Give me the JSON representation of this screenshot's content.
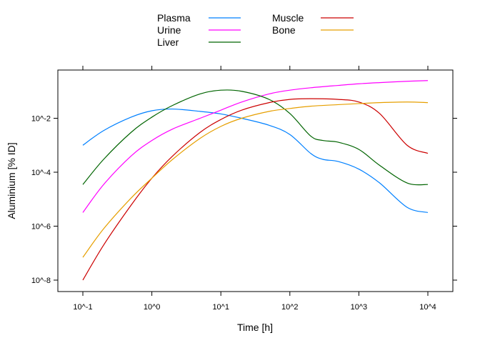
{
  "chart_data": {
    "type": "line",
    "xlabel": "Time [h]",
    "ylabel": "Aluminium [% ID]",
    "x_scale": "log10",
    "y_scale": "log10",
    "xlim": [
      0.1,
      10000
    ],
    "ylim": [
      1e-08,
      1
    ],
    "x_ticks": [
      {
        "value": 0.1,
        "label": "10^-1"
      },
      {
        "value": 1,
        "label": "10^0"
      },
      {
        "value": 10,
        "label": "10^1"
      },
      {
        "value": 100,
        "label": "10^2"
      },
      {
        "value": 1000,
        "label": "10^3"
      },
      {
        "value": 10000,
        "label": "10^4"
      }
    ],
    "y_ticks": [
      {
        "value": 0.01,
        "label": "10^-2"
      },
      {
        "value": 0.0001,
        "label": "10^-4"
      },
      {
        "value": 1e-06,
        "label": "10^-6"
      },
      {
        "value": 1e-08,
        "label": "10^-8"
      }
    ],
    "grid": false,
    "legend_position": "top",
    "legend": {
      "col1": [
        "Plasma",
        "Urine",
        "Liver"
      ],
      "col2": [
        "Muscle",
        "Bone"
      ]
    },
    "series": [
      {
        "name": "Plasma",
        "color": "#0080ff",
        "x": [
          0.1,
          0.2,
          0.5,
          1,
          2,
          5,
          10,
          20,
          50,
          100,
          200,
          300,
          500,
          1000,
          2000,
          5000,
          10000
        ],
        "y": [
          0.001,
          0.0035,
          0.011,
          0.019,
          0.022,
          0.018,
          0.0145,
          0.01,
          0.0055,
          0.0025,
          0.0005,
          0.0003,
          0.00025,
          0.00013,
          4e-05,
          5e-06,
          3.2e-06
        ]
      },
      {
        "name": "Urine",
        "color": "#ff00ff",
        "x": [
          0.1,
          0.2,
          0.5,
          1,
          2,
          5,
          10,
          20,
          50,
          100,
          200,
          500,
          1000,
          2000,
          5000,
          10000
        ],
        "y": [
          3.2e-06,
          3.5e-05,
          0.0004,
          0.0015,
          0.004,
          0.01,
          0.02,
          0.04,
          0.08,
          0.11,
          0.135,
          0.165,
          0.19,
          0.21,
          0.235,
          0.25
        ]
      },
      {
        "name": "Liver",
        "color": "#006400",
        "x": [
          0.1,
          0.2,
          0.5,
          1,
          2,
          5,
          10,
          20,
          50,
          100,
          200,
          300,
          500,
          1000,
          2000,
          5000,
          10000
        ],
        "y": [
          3.5e-05,
          0.0003,
          0.003,
          0.011,
          0.03,
          0.08,
          0.11,
          0.1,
          0.05,
          0.015,
          0.0022,
          0.0015,
          0.0013,
          0.0007,
          0.00018,
          4e-05,
          3.5e-05
        ]
      },
      {
        "name": "Muscle",
        "color": "#cc0000",
        "x": [
          0.1,
          0.2,
          0.5,
          1,
          2,
          5,
          10,
          20,
          50,
          100,
          200,
          500,
          1000,
          2000,
          5000,
          10000
        ],
        "y": [
          1e-08,
          2e-07,
          6e-06,
          6e-05,
          0.0004,
          0.003,
          0.009,
          0.02,
          0.038,
          0.05,
          0.053,
          0.05,
          0.04,
          0.015,
          0.001,
          0.0005
        ]
      },
      {
        "name": "Bone",
        "color": "#e69f00",
        "x": [
          0.1,
          0.2,
          0.5,
          1,
          2,
          5,
          10,
          20,
          50,
          100,
          200,
          500,
          1000,
          2000,
          5000,
          10000
        ],
        "y": [
          7e-08,
          8e-07,
          1.1e-05,
          6e-05,
          0.0003,
          0.0018,
          0.005,
          0.01,
          0.018,
          0.023,
          0.028,
          0.032,
          0.035,
          0.038,
          0.04,
          0.038
        ]
      }
    ]
  }
}
